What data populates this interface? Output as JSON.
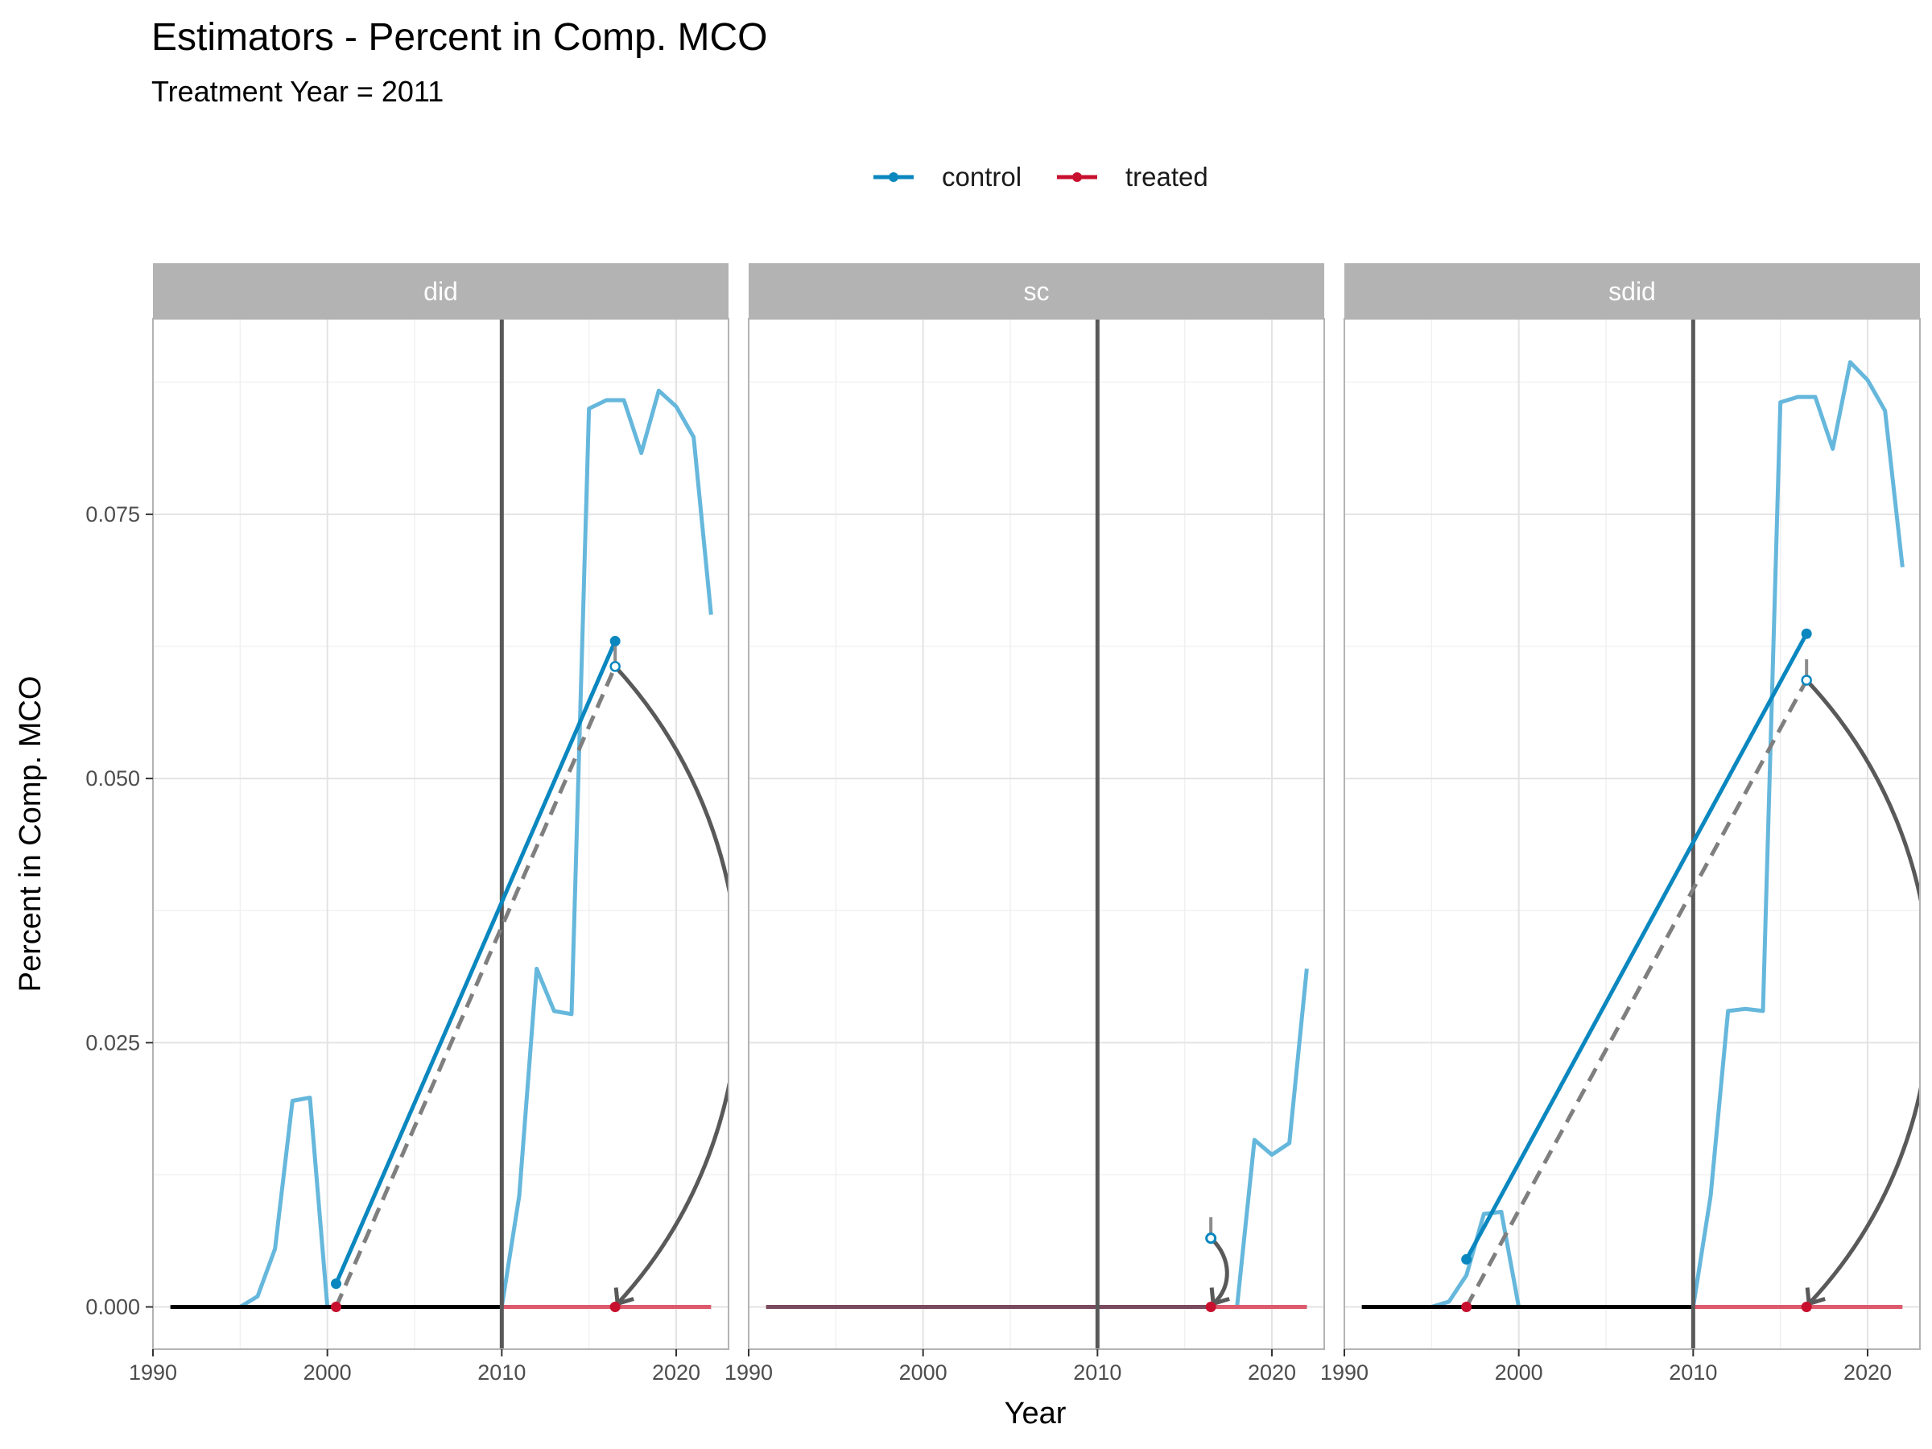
{
  "chart_data": {
    "type": "line",
    "title": "Estimators - Percent in Comp. MCO",
    "subtitle": "Treatment Year = 2011",
    "xlabel": "Year",
    "ylabel": "Percent in Comp. MCO",
    "xlim": [
      1990,
      2023
    ],
    "ylim": [
      -0.004,
      0.0935
    ],
    "x_ticks": [
      1990,
      2000,
      2010,
      2020
    ],
    "x_tick_labels": [
      "1990",
      "2000",
      "2010",
      "2020"
    ],
    "y_ticks": [
      0,
      0.025,
      0.05,
      0.075
    ],
    "y_tick_labels": [
      "0.000",
      "0.025",
      "0.050",
      "0.075"
    ],
    "grid": true,
    "legend_position": "top",
    "legend": [
      {
        "name": "control",
        "color": "#0a87bf"
      },
      {
        "name": "treated",
        "color": "#c8102e"
      }
    ],
    "colors": {
      "control_light": "#66b7dc",
      "control": "#0a87bf",
      "treated": "#c8102e",
      "treated_light": "#dc5a6b",
      "arrow": "#595959",
      "vline": "#595959",
      "strip": "#b3b3b3"
    },
    "panels": [
      {
        "label": "did",
        "treatment_line_x": 2010,
        "control_series": {
          "x": [
            1995,
            1996,
            1997,
            1998,
            1999,
            2000,
            2010,
            2011,
            2012,
            2013,
            2014,
            2015,
            2016,
            2017,
            2018,
            2019,
            2020,
            2021,
            2022
          ],
          "y": [
            0,
            0.001,
            0.0055,
            0.0195,
            0.0198,
            0,
            0,
            0.0105,
            0.032,
            0.028,
            0.0277,
            0.085,
            0.0858,
            0.0858,
            0.0808,
            0.0867,
            0.0852,
            0.0823,
            0.0655
          ]
        },
        "treated_pre": {
          "x": [
            1991,
            2010
          ],
          "y": [
            0,
            0
          ]
        },
        "treated_post": {
          "x": [
            2010,
            2022
          ],
          "y": [
            0,
            0
          ]
        },
        "control_trend": {
          "x": [
            2000.5,
            2016.5
          ],
          "y": [
            0.0022,
            0.063
          ]
        },
        "counterfactual": {
          "x": [
            2000.5,
            2016.5
          ],
          "y": [
            0,
            0.0606
          ]
        },
        "treated_points": {
          "x": [
            2000.5,
            2016.5
          ],
          "y": [
            0,
            0
          ]
        },
        "effect_arrow": {
          "from": [
            2016.5,
            0.0606
          ],
          "to": [
            2016.5,
            0
          ],
          "rx": 7
        }
      },
      {
        "label": "sc",
        "treatment_line_x": 2010,
        "control_series": {
          "x": [
            2018,
            2019,
            2020,
            2021,
            2022
          ],
          "y": [
            0,
            0.0158,
            0.0144,
            0.0155,
            0.032
          ]
        },
        "combined_line": {
          "x": [
            1991,
            2022
          ],
          "y": [
            0,
            0
          ]
        },
        "treated_post": {
          "x": [
            2016.5,
            2022
          ],
          "y": [
            0,
            0
          ]
        },
        "control_points": {
          "x": [
            2016.5
          ],
          "y": [
            0.0065
          ]
        },
        "treated_points": {
          "x": [
            2016.5
          ],
          "y": [
            0
          ]
        },
        "effect_arrow": {
          "from": [
            2016.5,
            0.0065
          ],
          "to": [
            2016.5,
            0
          ],
          "rx": 0.9
        }
      },
      {
        "label": "sdid",
        "treatment_line_x": 2010,
        "control_series": {
          "x": [
            1995,
            1996,
            1997,
            1998,
            1999,
            2000,
            2010,
            2011,
            2012,
            2013,
            2014,
            2015,
            2016,
            2017,
            2018,
            2019,
            2020,
            2021,
            2022
          ],
          "y": [
            0,
            0.0005,
            0.003,
            0.0088,
            0.009,
            0,
            0,
            0.0105,
            0.028,
            0.0282,
            0.028,
            0.0856,
            0.0861,
            0.0861,
            0.0812,
            0.0894,
            0.0877,
            0.0848,
            0.07
          ]
        },
        "treated_pre": {
          "x": [
            1991,
            2010
          ],
          "y": [
            0,
            0
          ]
        },
        "treated_post": {
          "x": [
            2010,
            2022
          ],
          "y": [
            0,
            0
          ]
        },
        "control_trend": {
          "x": [
            1997,
            2016.5
          ],
          "y": [
            0.0045,
            0.0637
          ]
        },
        "counterfactual": {
          "x": [
            1997,
            2016.5
          ],
          "y": [
            0,
            0.0593
          ]
        },
        "treated_points": {
          "x": [
            1997,
            2016.5
          ],
          "y": [
            0,
            0
          ]
        },
        "effect_arrow": {
          "from": [
            2016.5,
            0.0593
          ],
          "to": [
            2016.5,
            0
          ],
          "rx": 7
        }
      }
    ]
  }
}
